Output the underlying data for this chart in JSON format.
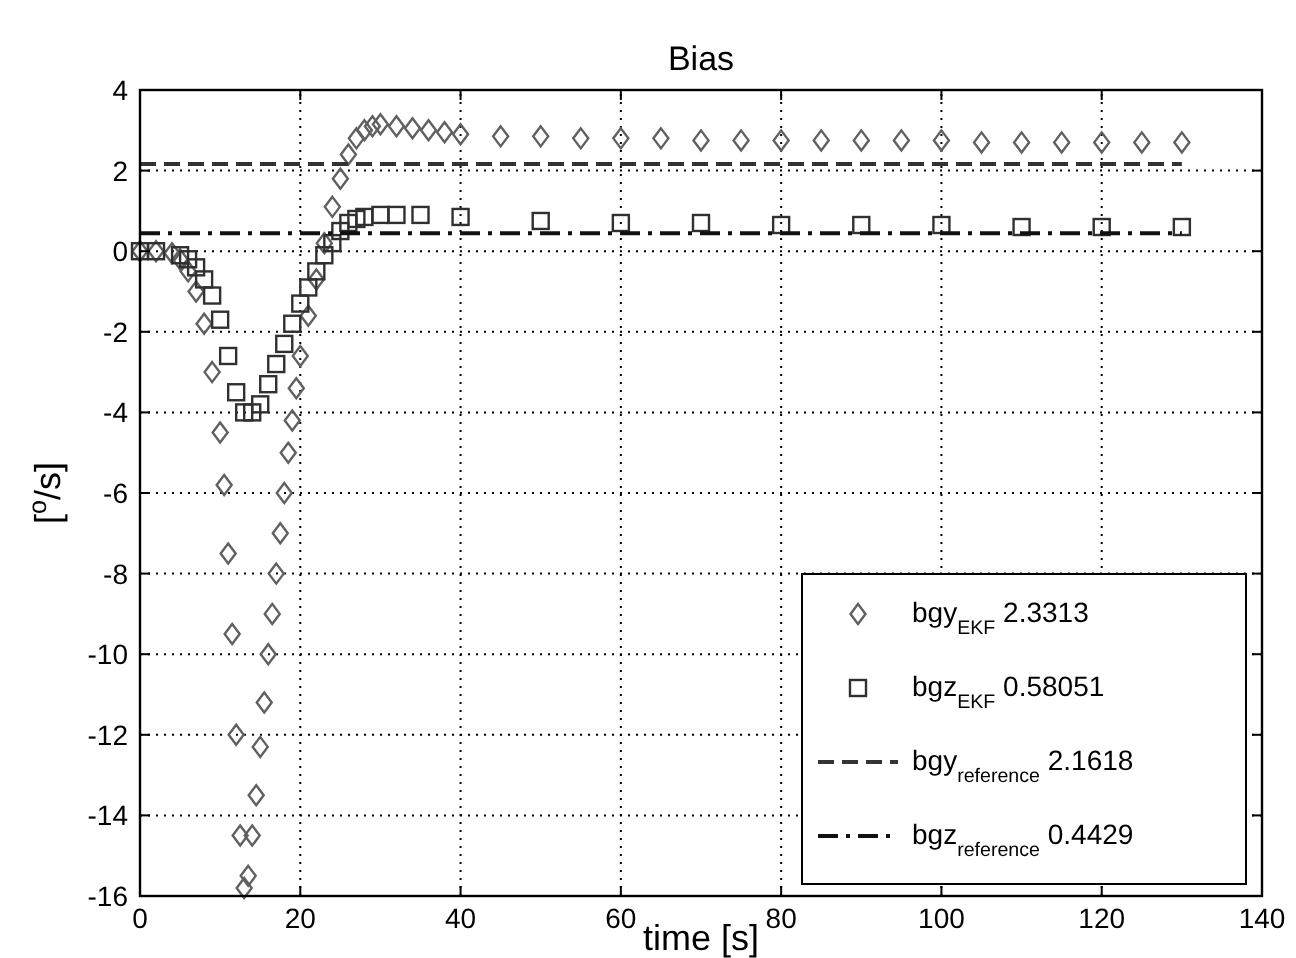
{
  "chart_data": {
    "type": "scatter",
    "title": "Bias",
    "xlabel": "time [s]",
    "ylabel": "[$^{o}$/s]",
    "xlim": [
      0,
      140
    ],
    "xticks": [
      0,
      20,
      40,
      60,
      80,
      100,
      120,
      140
    ],
    "ylim": [
      -16,
      4
    ],
    "yticks": [
      -16,
      -14,
      -12,
      -10,
      -8,
      -6,
      -4,
      -2,
      0,
      2,
      4
    ],
    "grid": true,
    "legend": "bottom right",
    "series": [
      {
        "name": "bgy$_{EKF}$ 2.3313",
        "color": "#606060",
        "marker": "diamond",
        "x": [
          0,
          2,
          4,
          5,
          6,
          7,
          8,
          9,
          10,
          10.5,
          11,
          11.5,
          12,
          12.5,
          13,
          13.5,
          14,
          14.5,
          15,
          15.5,
          16,
          16.5,
          17,
          17.5,
          18,
          18.5,
          19,
          19.5,
          20,
          21,
          22,
          23,
          24,
          25,
          26,
          27,
          28,
          29,
          30,
          32,
          34,
          36,
          38,
          40,
          45,
          50,
          55,
          60,
          65,
          70,
          75,
          80,
          85,
          90,
          95,
          100,
          105,
          110,
          115,
          120,
          125,
          130
        ],
        "values": [
          0,
          0,
          -0.05,
          -0.2,
          -0.5,
          -1,
          -1.8,
          -3,
          -4.5,
          -5.8,
          -7.5,
          -9.5,
          -12,
          -14.5,
          -15.8,
          -15.5,
          -14.5,
          -13.5,
          -12.3,
          -11.2,
          -10,
          -9,
          -8,
          -7,
          -6,
          -5,
          -4.2,
          -3.4,
          -2.6,
          -1.6,
          -0.7,
          0.2,
          1.1,
          1.8,
          2.4,
          2.8,
          3.0,
          3.1,
          3.15,
          3.1,
          3.05,
          3.0,
          2.95,
          2.9,
          2.85,
          2.85,
          2.8,
          2.8,
          2.8,
          2.75,
          2.75,
          2.75,
          2.75,
          2.75,
          2.75,
          2.75,
          2.7,
          2.7,
          2.7,
          2.7,
          2.7,
          2.7
        ]
      },
      {
        "name": "bgz$_{EKF}$ 0.58051",
        "color": "#303030",
        "marker": "square",
        "x": [
          0,
          2,
          5,
          6,
          7,
          8,
          9,
          10,
          11,
          12,
          13,
          14,
          15,
          16,
          17,
          18,
          19,
          20,
          21,
          22,
          23,
          24,
          25,
          26,
          27,
          28,
          30,
          32,
          35,
          40,
          50,
          60,
          70,
          80,
          90,
          100,
          110,
          120,
          130
        ],
        "values": [
          0,
          0,
          -0.1,
          -0.2,
          -0.4,
          -0.7,
          -1.1,
          -1.7,
          -2.6,
          -3.5,
          -4,
          -4,
          -3.8,
          -3.3,
          -2.8,
          -2.3,
          -1.8,
          -1.3,
          -0.9,
          -0.5,
          -0.1,
          0.2,
          0.5,
          0.7,
          0.8,
          0.85,
          0.9,
          0.9,
          0.9,
          0.85,
          0.75,
          0.7,
          0.7,
          0.65,
          0.65,
          0.65,
          0.6,
          0.6,
          0.6
        ]
      },
      {
        "name": "bgy$_{reference}$ 2.1618",
        "type": "line",
        "color": "#333333",
        "marker": "none",
        "line_style": "dashed",
        "x": [
          0,
          130
        ],
        "values": [
          2.1618,
          2.1618
        ]
      },
      {
        "name": "bgz$_{reference}$ 0.4429",
        "type": "line",
        "color": "#111111",
        "marker": "none",
        "line_style": "dashdot",
        "x": [
          0,
          130
        ],
        "values": [
          0.4429,
          0.4429
        ]
      }
    ]
  }
}
